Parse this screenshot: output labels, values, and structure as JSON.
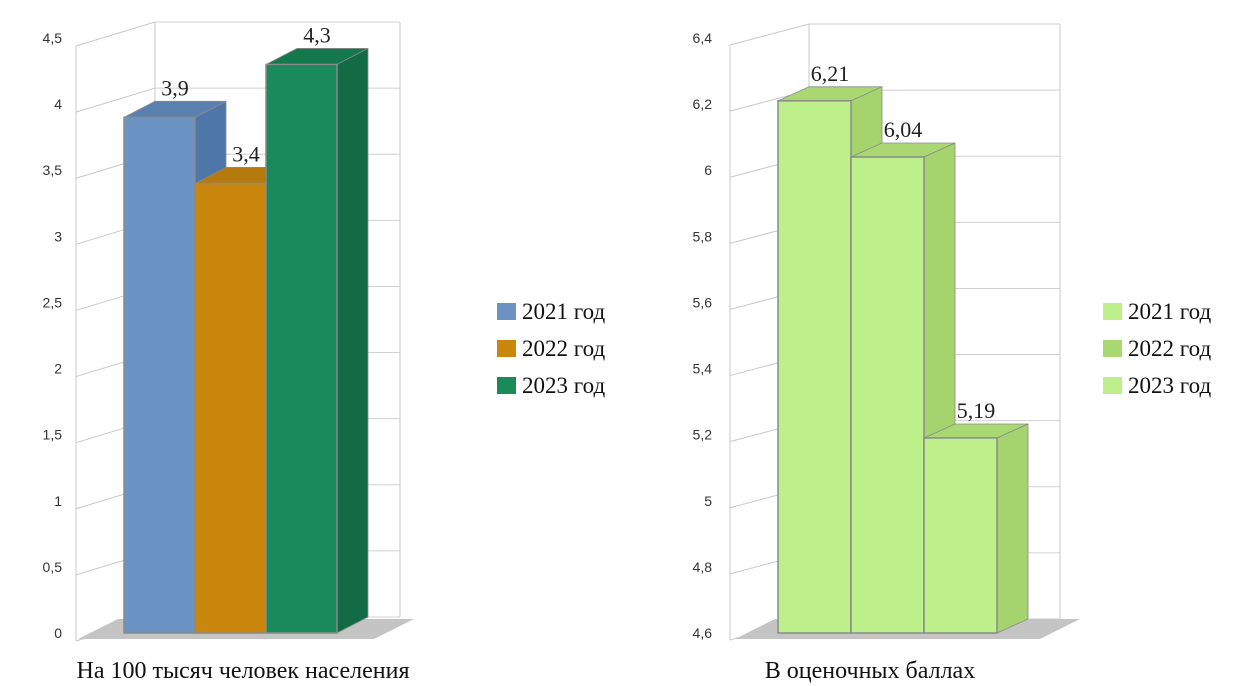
{
  "chart_data": [
    {
      "type": "bar",
      "xlabel": "На 100 тысяч человек населения",
      "ylim": [
        0,
        4.5
      ],
      "yticks": [
        "0",
        "0,5",
        "1",
        "1,5",
        "2",
        "2,5",
        "3",
        "3,5",
        "4",
        "4,5"
      ],
      "series": [
        {
          "name": "2021 год",
          "values": [
            3.9
          ],
          "label": "3,9",
          "color": "#6b94c4"
        },
        {
          "name": "2022 год",
          "values": [
            3.4
          ],
          "label": "3,4",
          "color": "#c9870d"
        },
        {
          "name": "2023 год",
          "values": [
            4.3
          ],
          "label": "4,3",
          "color": "#1a8a5a"
        }
      ],
      "legend": "right",
      "grid": true
    },
    {
      "type": "bar",
      "xlabel": "В оценочных баллах",
      "ylim": [
        4.6,
        6.4
      ],
      "yticks": [
        "4,6",
        "4,8",
        "5",
        "5,2",
        "5,4",
        "5,6",
        "5,8",
        "6",
        "6,2",
        "6,4"
      ],
      "series": [
        {
          "name": "2021 год",
          "values": [
            6.21
          ],
          "label": "6,21",
          "color": "#bdf08a"
        },
        {
          "name": "2022 год",
          "values": [
            6.04
          ],
          "label": "6,04",
          "color": "#bdf08a"
        },
        {
          "name": "2023 год",
          "values": [
            5.19
          ],
          "label": "5,19",
          "color": "#bdf08a"
        }
      ],
      "legend": "right",
      "grid": true
    }
  ]
}
